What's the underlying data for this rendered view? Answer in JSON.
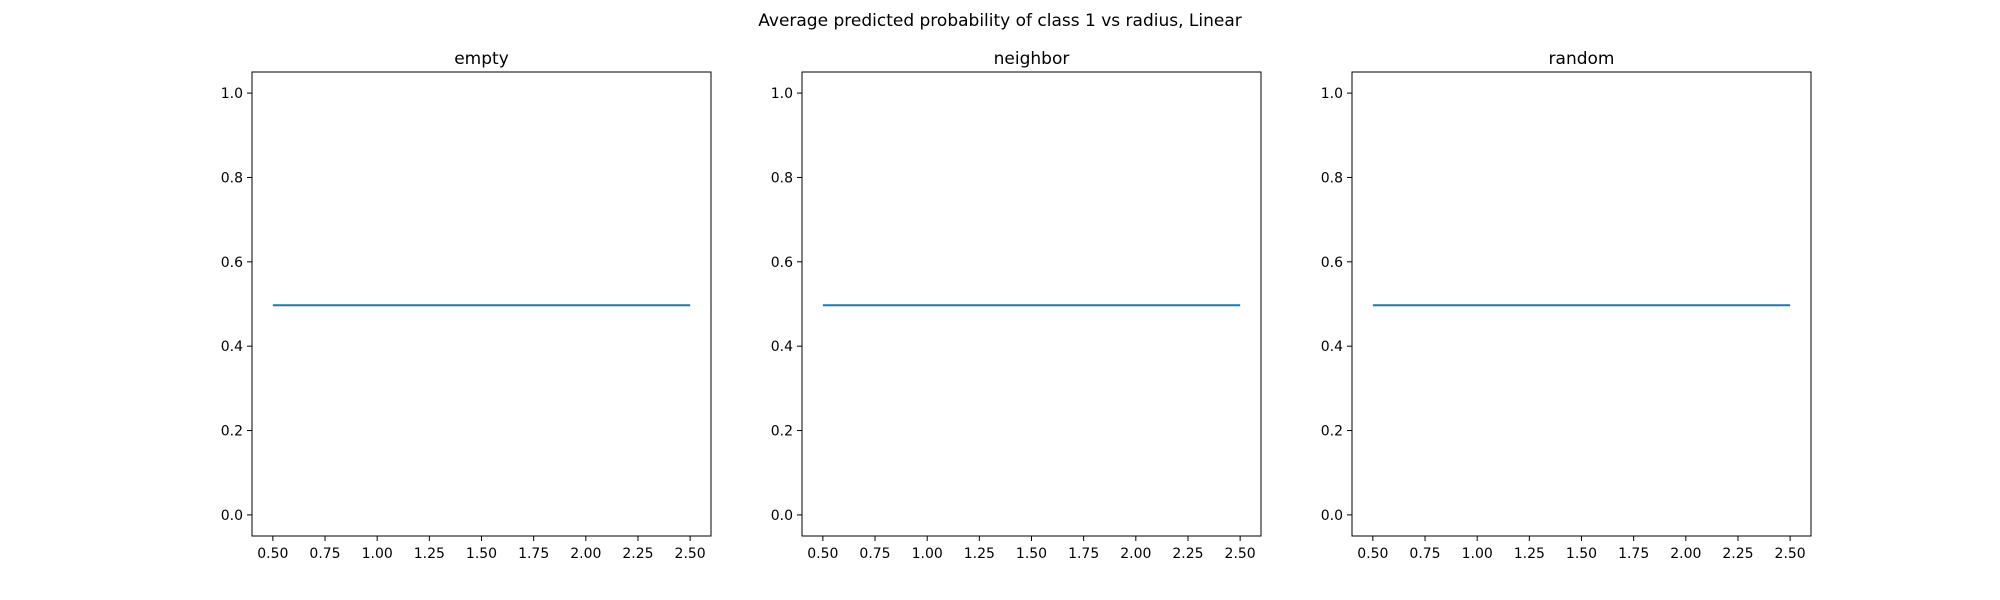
{
  "figure": {
    "suptitle": "Average predicted probability of class 1 vs radius, Linear"
  },
  "colors": {
    "line": "#1f77b4",
    "axes": "#000000",
    "background": "#ffffff"
  },
  "chart_data": [
    {
      "type": "line",
      "title": "empty",
      "xlabel": "",
      "ylabel": "",
      "xlim": [
        0.4,
        2.6
      ],
      "ylim": [
        -0.05,
        1.05
      ],
      "xticks": [
        "0.50",
        "0.75",
        "1.00",
        "1.25",
        "1.50",
        "1.75",
        "2.00",
        "2.25",
        "2.50"
      ],
      "yticks": [
        "0.0",
        "0.2",
        "0.4",
        "0.6",
        "0.8",
        "1.0"
      ],
      "grid": false,
      "series": [
        {
          "x": [
            0.5,
            0.75,
            1.0,
            1.25,
            1.5,
            1.75,
            2.0,
            2.25,
            2.5
          ],
          "y": [
            0.497,
            0.497,
            0.497,
            0.497,
            0.497,
            0.497,
            0.497,
            0.497,
            0.497
          ]
        }
      ]
    },
    {
      "type": "line",
      "title": "neighbor",
      "xlabel": "",
      "ylabel": "",
      "xlim": [
        0.4,
        2.6
      ],
      "ylim": [
        -0.05,
        1.05
      ],
      "xticks": [
        "0.50",
        "0.75",
        "1.00",
        "1.25",
        "1.50",
        "1.75",
        "2.00",
        "2.25",
        "2.50"
      ],
      "yticks": [
        "0.0",
        "0.2",
        "0.4",
        "0.6",
        "0.8",
        "1.0"
      ],
      "grid": false,
      "series": [
        {
          "x": [
            0.5,
            0.75,
            1.0,
            1.25,
            1.5,
            1.75,
            2.0,
            2.25,
            2.5
          ],
          "y": [
            0.497,
            0.497,
            0.497,
            0.497,
            0.497,
            0.497,
            0.497,
            0.497,
            0.497
          ]
        }
      ]
    },
    {
      "type": "line",
      "title": "random",
      "xlabel": "",
      "ylabel": "",
      "xlim": [
        0.4,
        2.6
      ],
      "ylim": [
        -0.05,
        1.05
      ],
      "xticks": [
        "0.50",
        "0.75",
        "1.00",
        "1.25",
        "1.50",
        "1.75",
        "2.00",
        "2.25",
        "2.50"
      ],
      "yticks": [
        "0.0",
        "0.2",
        "0.4",
        "0.6",
        "0.8",
        "1.0"
      ],
      "grid": false,
      "series": [
        {
          "x": [
            0.5,
            0.75,
            1.0,
            1.25,
            1.5,
            1.75,
            2.0,
            2.25,
            2.5
          ],
          "y": [
            0.497,
            0.497,
            0.497,
            0.497,
            0.497,
            0.497,
            0.497,
            0.497,
            0.497
          ]
        }
      ]
    }
  ]
}
